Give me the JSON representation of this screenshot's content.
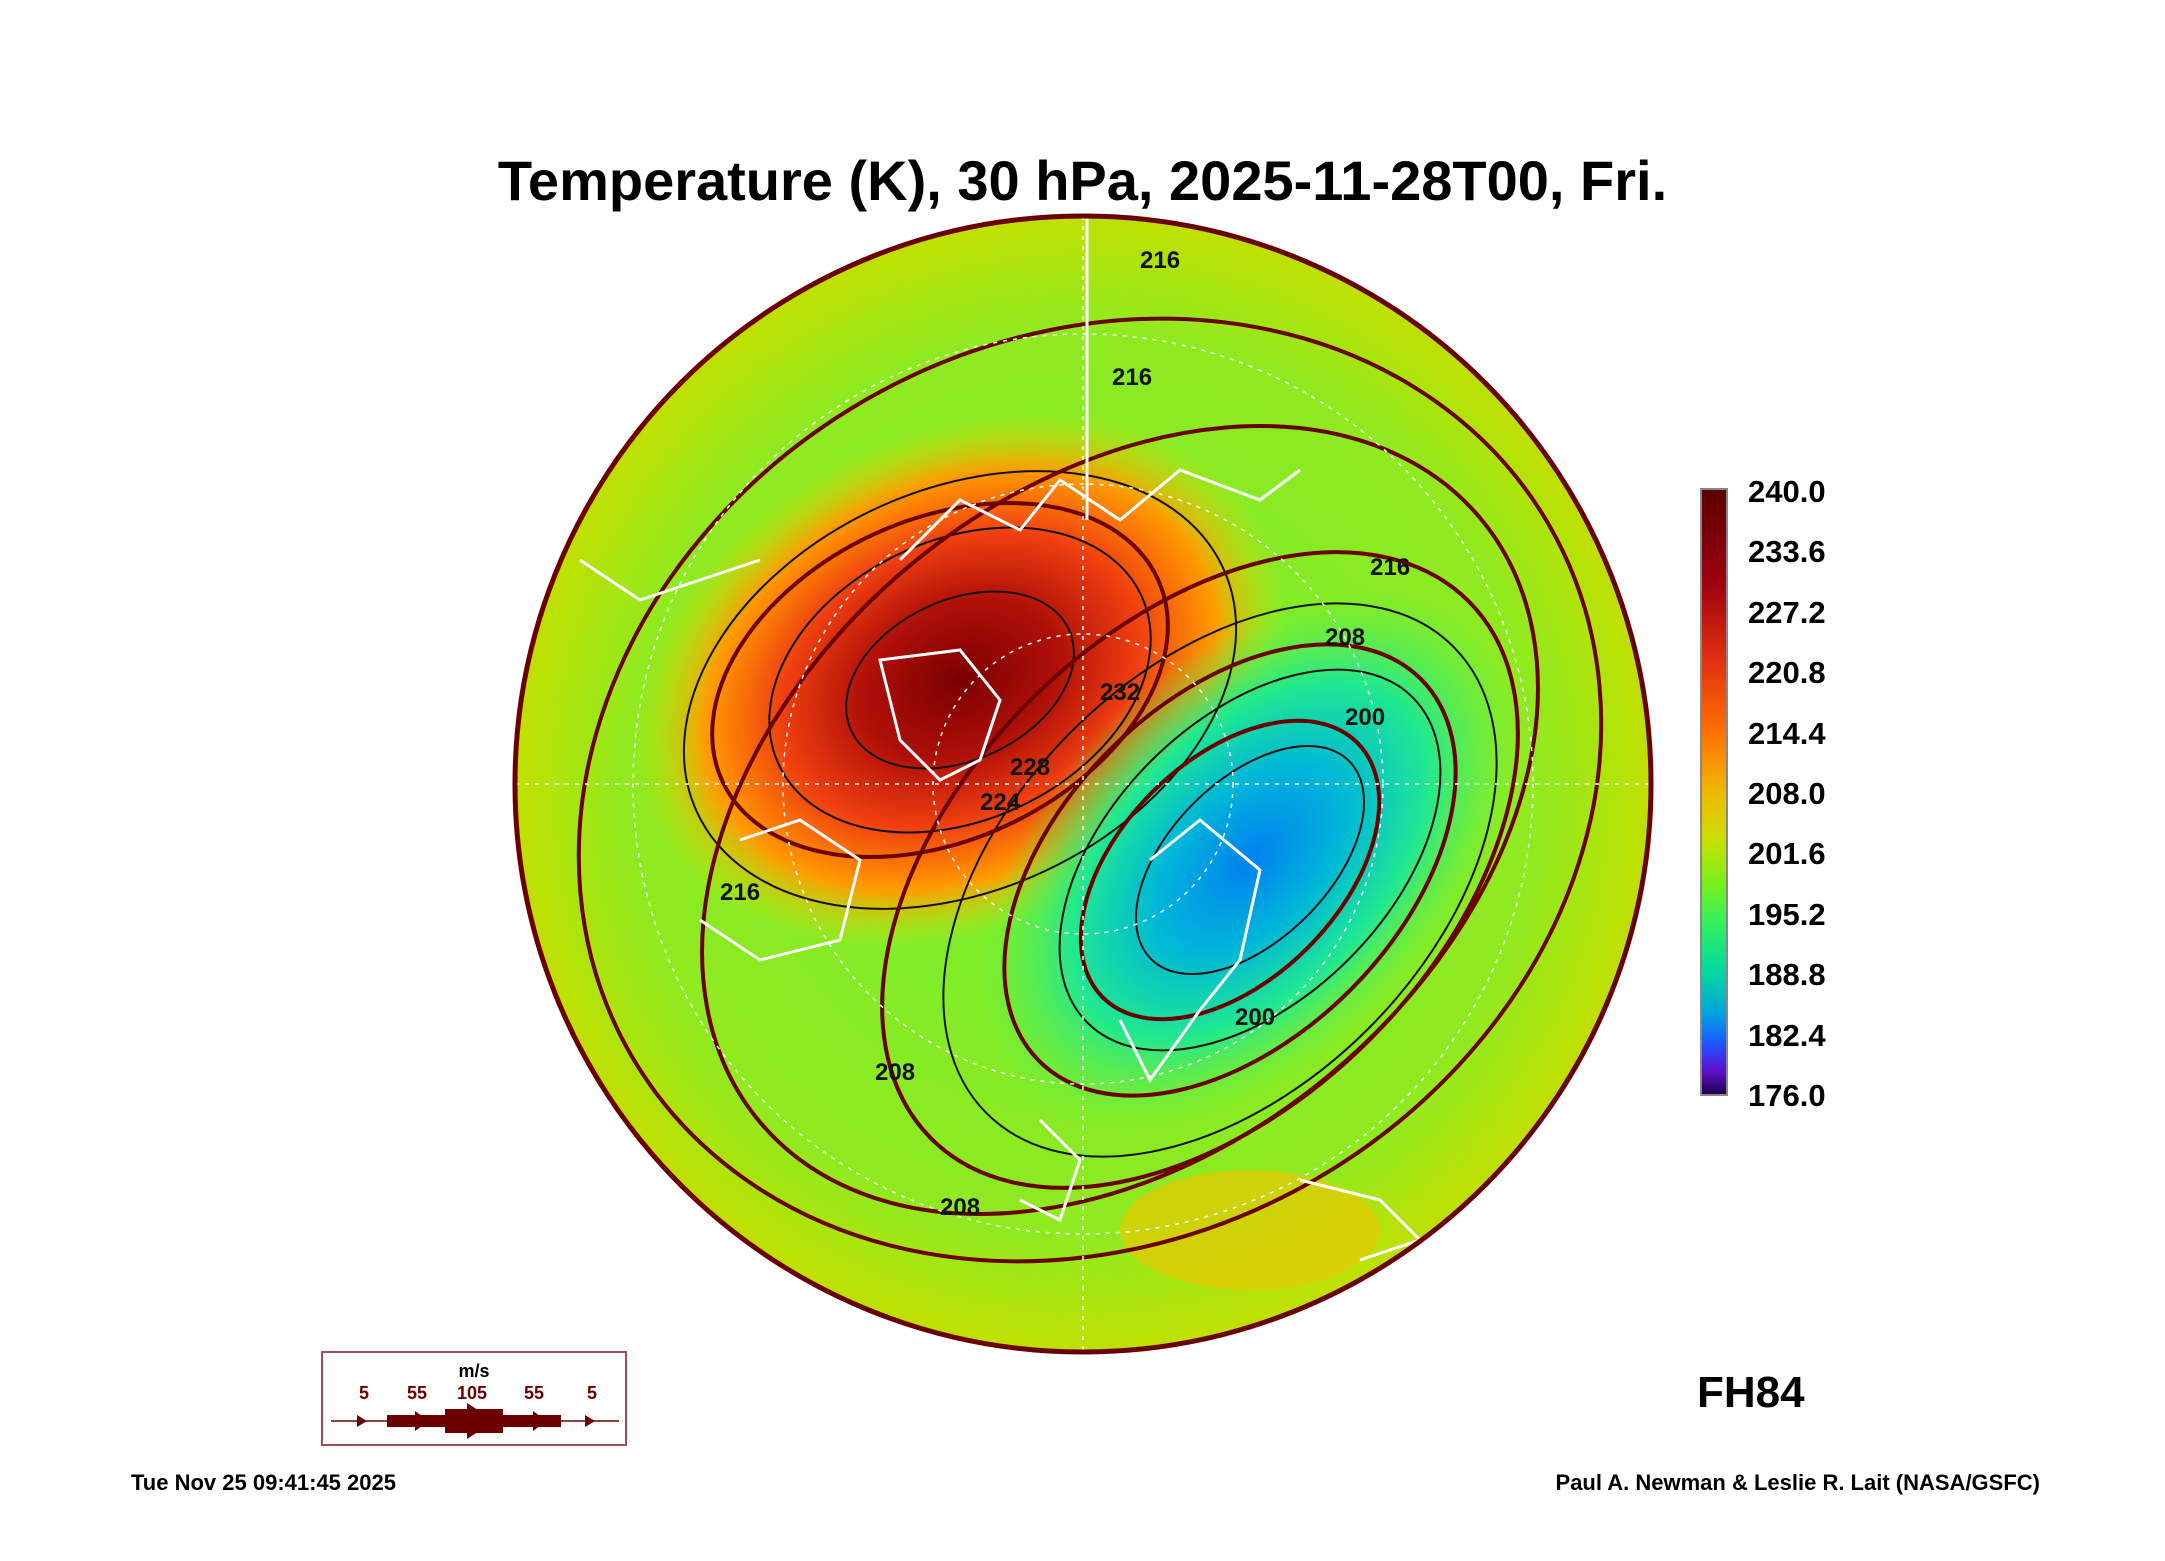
{
  "chart_data": {
    "type": "heatmap",
    "title": "Temperature (K), 30 hPa, 2025-11-28T00, Fri.",
    "projection": "north polar stereographic",
    "colorbar": {
      "min": 176.0,
      "max": 240.0,
      "ticks": [
        "240.0",
        "233.6",
        "227.2",
        "220.8",
        "214.4",
        "208.0",
        "201.6",
        "195.2",
        "188.8",
        "182.4",
        "176.0"
      ],
      "colors": [
        "#5a0000",
        "#9c0010",
        "#e03010",
        "#ff7000",
        "#f0b800",
        "#c8e000",
        "#70f020",
        "#30f060",
        "#00d8a0",
        "#00a0e0",
        "#2050ff",
        "#6010d0",
        "#200050"
      ]
    },
    "contour_labels": [
      "216",
      "216",
      "216",
      "216",
      "224",
      "228",
      "232",
      "208",
      "200",
      "200",
      "208",
      "208"
    ],
    "features": {
      "warm_max_K": 238,
      "cold_min_K": 192
    },
    "wind_legend": {
      "unit": "m/s",
      "values": [
        "5",
        "55",
        "105",
        "55",
        "5"
      ]
    },
    "forecast_hour": "FH84"
  },
  "footer": {
    "timestamp": "Tue Nov 25 09:41:45 2025",
    "credit": "Paul A. Newman & Leslie R. Lait (NASA/GSFC)"
  }
}
